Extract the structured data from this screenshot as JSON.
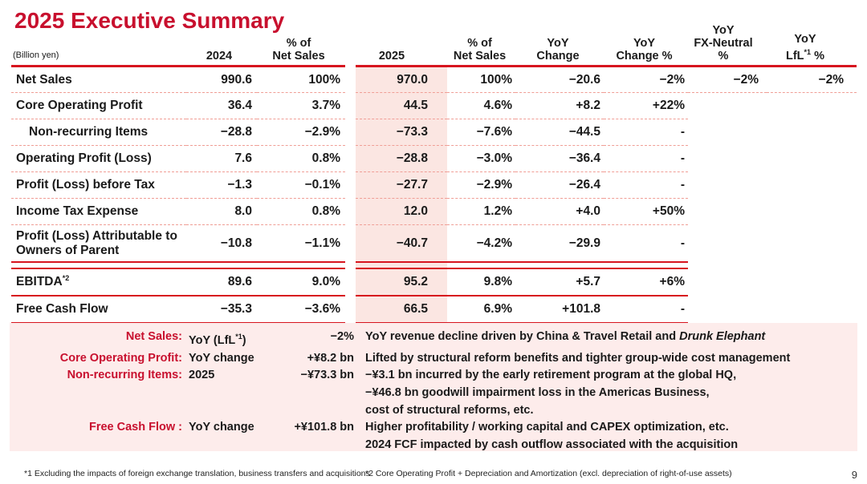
{
  "slide": {
    "title": "2025 Executive Summary",
    "page_number": "9",
    "footnote_1": "*1 Excluding the impacts of foreign exchange translation, business transfers and acquisitions",
    "footnote_2": "*2 Core Operating Profit + Depreciation and Amortization (excl. depreciation of right-of-use assets)"
  },
  "colors": {
    "accent_red": "#c8102e",
    "line_red": "#d7141e",
    "pink_column": "#fbe6e2",
    "pink_notes_bg": "#fdeceb"
  },
  "table": {
    "unit_label": "(Billion yen)",
    "headers": {
      "y2024": "2024",
      "pct24_line1": "% of",
      "pct24_line2": "Net Sales",
      "y2025": "2025",
      "pct25_line1": "% of",
      "pct25_line2": "Net Sales",
      "yoy_line1": "YoY",
      "yoy_line2": "Change",
      "yoyp_line1": "YoY",
      "yoyp_line2": "Change %",
      "fx_line1": "YoY",
      "fx_line2": "FX-Neutral %",
      "lfl_line1": "YoY",
      "lfl_line2_pre": "LfL",
      "lfl_sup": "*1",
      "lfl_line2_post": " %"
    },
    "rows": [
      {
        "label": "Net Sales",
        "v2024": "990.6",
        "p2024": "100%",
        "v2025": "970.0",
        "p2025": "100%",
        "yoy": "−20.6",
        "yoyp": "−2%",
        "fx": "−2%",
        "lfl": "−2%"
      },
      {
        "label": "Core Operating Profit",
        "v2024": "36.4",
        "p2024": "3.7%",
        "v2025": "44.5",
        "p2025": "4.6%",
        "yoy": "+8.2",
        "yoyp": "+22%",
        "fx": "",
        "lfl": ""
      },
      {
        "label": "Non-recurring Items",
        "v2024": "−28.8",
        "p2024": "−2.9%",
        "v2025": "−73.3",
        "p2025": "−7.6%",
        "yoy": "−44.5",
        "yoyp": "-",
        "fx": "",
        "lfl": ""
      },
      {
        "label": "Operating Profit  (Loss)",
        "v2024": "7.6",
        "p2024": "0.8%",
        "v2025": "−28.8",
        "p2025": "−3.0%",
        "yoy": "−36.4",
        "yoyp": "-",
        "fx": "",
        "lfl": ""
      },
      {
        "label": "Profit (Loss) before Tax",
        "v2024": "−1.3",
        "p2024": "−0.1%",
        "v2025": "−27.7",
        "p2025": "−2.9%",
        "yoy": "−26.4",
        "yoyp": "-",
        "fx": "",
        "lfl": ""
      },
      {
        "label": "Income Tax Expense",
        "v2024": "8.0",
        "p2024": "0.8%",
        "v2025": "12.0",
        "p2025": "1.2%",
        "yoy": "+4.0",
        "yoyp": "+50%",
        "fx": "",
        "lfl": ""
      },
      {
        "label": "Profit (Loss) Attributable to Owners of Parent",
        "v2024": "−10.8",
        "p2024": "−1.1%",
        "v2025": "−40.7",
        "p2025": "−4.2%",
        "yoy": "−29.9",
        "yoyp": "-",
        "fx": "",
        "lfl": ""
      },
      {
        "label": "EBITDA",
        "label_sup": "*2",
        "v2024": "89.6",
        "p2024": "9.0%",
        "v2025": "95.2",
        "p2025": "9.8%",
        "yoy": "+5.7",
        "yoyp": "+6%",
        "fx": "",
        "lfl": ""
      },
      {
        "label": "Free Cash Flow",
        "v2024": "−35.3",
        "p2024": "−3.6%",
        "v2025": "66.5",
        "p2025": "6.9%",
        "yoy": "+101.8",
        "yoyp": "-",
        "fx": "",
        "lfl": ""
      }
    ]
  },
  "notes": {
    "rows": [
      {
        "label": "Net Sales:",
        "mid_pre": "YoY (LfL",
        "mid_sup": "*1",
        "mid_post": ")",
        "value": "−2%",
        "desc": "YoY revenue decline driven by China & Travel Retail and ",
        "desc_italic": "Drunk Elephant"
      },
      {
        "label": "Core Operating Profit:",
        "mid": "YoY change",
        "value": "+¥8.2 bn",
        "desc": "Lifted by structural reform benefits and tighter group-wide cost management"
      },
      {
        "label": "Non-recurring Items:",
        "mid": "2025",
        "value": "−¥73.3 bn",
        "desc": "−¥3.1 bn incurred by the early retirement program at the global HQ,"
      },
      {
        "label": "",
        "mid": "",
        "value": "",
        "desc": "−¥46.8 bn goodwill impairment loss in the Americas Business,"
      },
      {
        "label": "",
        "mid": "",
        "value": "",
        "desc": "cost of structural reforms, etc."
      },
      {
        "label": "Free Cash Flow :",
        "mid": "YoY change",
        "value": "+¥101.8 bn",
        "desc": "Higher profitability / working capital and CAPEX optimization, etc."
      },
      {
        "label": "",
        "mid": "",
        "value": "",
        "desc": "2024 FCF impacted by cash outflow associated with the acquisition"
      }
    ]
  }
}
